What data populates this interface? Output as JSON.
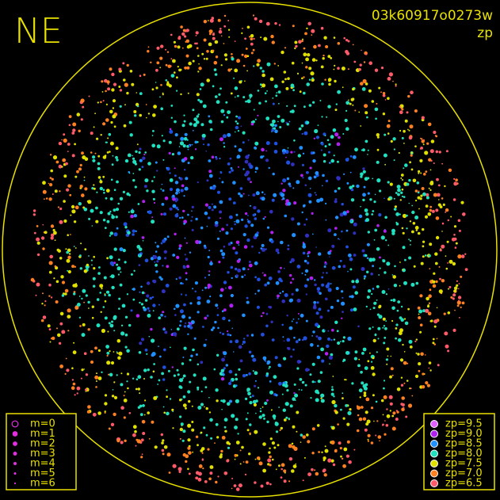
{
  "header": {
    "title": "NE",
    "frame_id": "03k60917o0273w",
    "subtitle": "zp"
  },
  "magnitude_legend": {
    "items": [
      "m=0",
      "m=1",
      "m=2",
      "m=3",
      "m=4",
      "m=5",
      "m=6"
    ],
    "color": "#e030e0"
  },
  "zp_legend": {
    "items": [
      {
        "label": "zp=9.5",
        "color": "#e060ff"
      },
      {
        "label": "zp=9.0",
        "color": "#b020f0"
      },
      {
        "label": "zp=8.5",
        "color": "#2090ff"
      },
      {
        "label": "zp=8.0",
        "color": "#20e0c0"
      },
      {
        "label": "zp=7.5",
        "color": "#e0e000"
      },
      {
        "label": "zp=7.0",
        "color": "#ff8020"
      },
      {
        "label": "zp=6.5",
        "color": "#ff5a6a"
      }
    ]
  },
  "frame_color": "#e8e000"
}
